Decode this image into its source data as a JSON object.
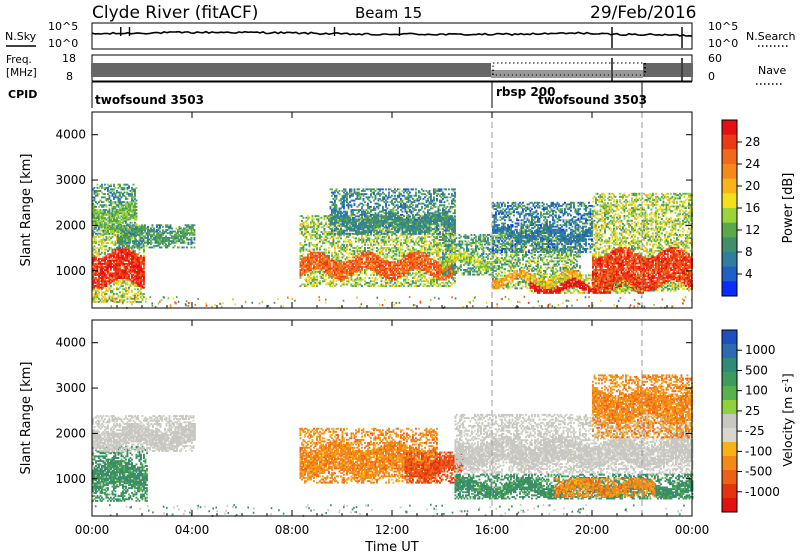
{
  "header": {
    "left": "Clyde River (fitACF)",
    "center": "Beam 15",
    "right": "29/Feb/2016"
  },
  "noise_panel": {
    "left_label": "N.Sky",
    "left_ticks": [
      "10^5",
      "10^0"
    ],
    "right_label": "N.Search",
    "right_ticks": [
      "10^5",
      "10^0"
    ]
  },
  "freq_panel": {
    "left_label_1": "Freq.",
    "left_label_2": "[MHz]",
    "left_ticks": [
      "18",
      "8"
    ],
    "right_label": "Nave",
    "right_ticks": [
      "60",
      "0"
    ]
  },
  "cpid_panel": {
    "label": "CPID",
    "segments": [
      {
        "name": "twofsound 3503",
        "start": 0,
        "end": 16
      },
      {
        "name": "rbsp 200",
        "start": 16,
        "end": 22
      },
      {
        "name": "twofsound 3503",
        "start": 16,
        "end": 22
      }
    ]
  },
  "axes": {
    "x_label": "Time UT",
    "x_ticks": [
      "00:00",
      "04:00",
      "08:00",
      "12:00",
      "16:00",
      "20:00",
      "00:00"
    ],
    "y_label": "Slant Range [km]",
    "y_ticks": [
      "1000",
      "2000",
      "3000",
      "4000"
    ]
  },
  "colorbars": {
    "power": {
      "label": "Power [dB]",
      "ticks": [
        "4",
        "8",
        "12",
        "16",
        "20",
        "24",
        "28"
      ],
      "colors": [
        "#0a2cff",
        "#1f5fc8",
        "#2f7ea0",
        "#3f8f6a",
        "#5aa84a",
        "#9bd33a",
        "#f4e01a",
        "#f7b51a",
        "#f58a1a",
        "#f06a1a",
        "#ee3a14",
        "#e51010"
      ]
    },
    "velocity": {
      "label_text": "Velocity [m s",
      "label_sup": "-1",
      "label_close": "]",
      "ticks": [
        "1000",
        "500",
        "100",
        "25",
        "-25",
        "-100",
        "-500",
        "-1000"
      ],
      "colors": [
        "#1f4fbf",
        "#2b6bb0",
        "#2f8a78",
        "#3d9c5a",
        "#56b34a",
        "#8fd240",
        "#c8c8c0",
        "#d7d7d0",
        "#f7b21a",
        "#f28a1a",
        "#ee6018",
        "#e53210",
        "#e51010"
      ]
    }
  },
  "chart_data": [
    {
      "type": "heatmap",
      "name": "power",
      "title": "Power [dB]",
      "xlabel": "Time UT",
      "ylabel": "Slant Range [km]",
      "xlim": [
        0,
        24
      ],
      "ylim": [
        180,
        4500
      ],
      "clim": [
        0,
        30
      ],
      "dashed_vlines_hours": [
        16,
        22
      ],
      "blobs": [
        {
          "t": [
            0,
            2.1
          ],
          "r": [
            300,
            2000
          ],
          "core": [
            700,
            1400
          ],
          "v": 27
        },
        {
          "t": [
            1.0,
            4.1
          ],
          "r": [
            1500,
            2000
          ],
          "core": [
            1650,
            1850
          ],
          "v": 10
        },
        {
          "t": [
            0,
            1.8
          ],
          "r": [
            1800,
            2900
          ],
          "core": [
            2000,
            2400
          ],
          "v": 12
        },
        {
          "t": [
            8.3,
            14.5
          ],
          "r": [
            650,
            2200
          ],
          "core": [
            900,
            1300
          ],
          "v": 24
        },
        {
          "t": [
            9.5,
            14.5
          ],
          "r": [
            1800,
            2800
          ],
          "core": [
            1900,
            2200
          ],
          "v": 8
        },
        {
          "t": [
            14.0,
            16.0
          ],
          "r": [
            900,
            1800
          ],
          "core": [
            1100,
            1300
          ],
          "v": 14
        },
        {
          "t": [
            16.0,
            19.5
          ],
          "r": [
            600,
            1900
          ],
          "core": [
            700,
            900
          ],
          "v": 20
        },
        {
          "t": [
            17.5,
            22.0
          ],
          "r": [
            500,
            900
          ],
          "core": [
            520,
            700
          ],
          "v": 29
        },
        {
          "t": [
            20.0,
            24
          ],
          "r": [
            550,
            2700
          ],
          "core": [
            650,
            1400
          ],
          "v": 26
        },
        {
          "t": [
            16.0,
            20.0
          ],
          "r": [
            1400,
            2500
          ],
          "core": [
            1700,
            1900
          ],
          "v": 6
        }
      ]
    },
    {
      "type": "heatmap",
      "name": "velocity",
      "title": "Velocity [m s-1]",
      "xlabel": "Time UT",
      "ylabel": "Slant Range [km]",
      "xlim": [
        0,
        24
      ],
      "ylim": [
        180,
        4500
      ],
      "dashed_vlines_hours": [
        16,
        22
      ],
      "blobs": [
        {
          "t": [
            0,
            2.2
          ],
          "r": [
            500,
            1700
          ],
          "core": [
            800,
            1300
          ],
          "v": 200,
          "class": "positive"
        },
        {
          "t": [
            0,
            4.1
          ],
          "r": [
            1600,
            2400
          ],
          "core": [
            1700,
            2100
          ],
          "v": 0,
          "class": "low"
        },
        {
          "t": [
            8.3,
            13.8
          ],
          "r": [
            900,
            2100
          ],
          "core": [
            1100,
            1700
          ],
          "v": -150,
          "class": "negative"
        },
        {
          "t": [
            12.5,
            14.8
          ],
          "r": [
            900,
            1600
          ],
          "core": [
            1100,
            1400
          ],
          "v": -600,
          "class": "negative"
        },
        {
          "t": [
            14.5,
            24
          ],
          "r": [
            1100,
            2400
          ],
          "core": [
            1300,
            1800
          ],
          "v": 0,
          "class": "low"
        },
        {
          "t": [
            14.5,
            24
          ],
          "r": [
            550,
            1100
          ],
          "core": [
            650,
            900
          ],
          "v": 150,
          "class": "positive"
        },
        {
          "t": [
            18.5,
            22.5
          ],
          "r": [
            600,
            1000
          ],
          "core": [
            700,
            900
          ],
          "v": -100,
          "class": "negative"
        },
        {
          "t": [
            20.0,
            24
          ],
          "r": [
            1900,
            3300
          ],
          "core": [
            2300,
            2900
          ],
          "v": -100,
          "class": "negative"
        }
      ]
    }
  ]
}
